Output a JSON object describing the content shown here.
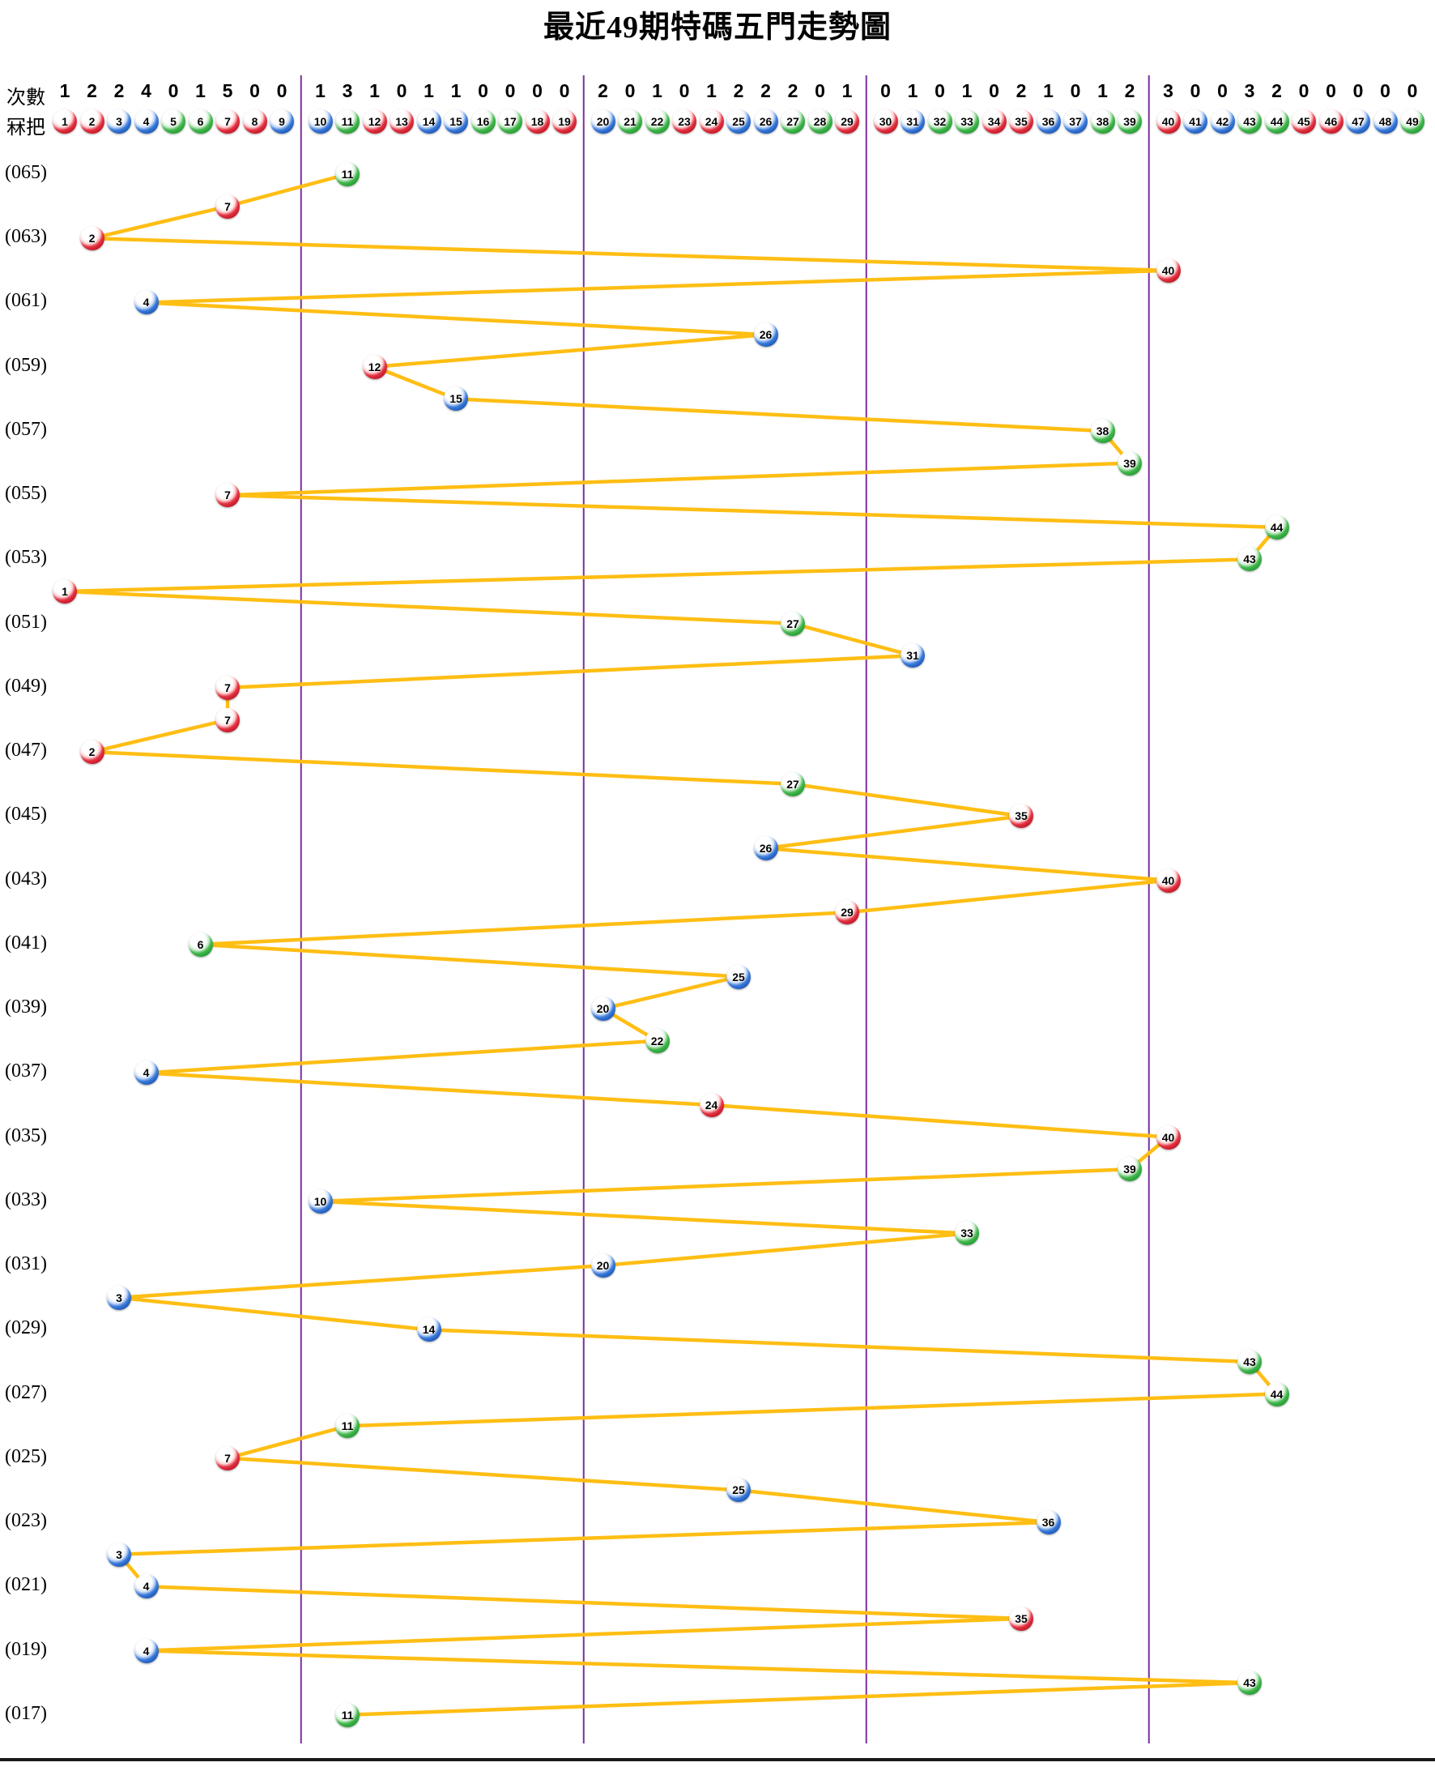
{
  "title": "最近49期特碼五門走勢圖",
  "header": {
    "counts_label": "次數",
    "balls_label": "冧把",
    "counts": [
      1,
      2,
      2,
      4,
      0,
      1,
      5,
      0,
      0,
      1,
      3,
      1,
      0,
      1,
      1,
      0,
      0,
      0,
      0,
      2,
      0,
      1,
      0,
      1,
      2,
      2,
      2,
      0,
      1,
      0,
      1,
      0,
      1,
      0,
      2,
      1,
      0,
      1,
      2,
      3,
      0,
      0,
      3,
      2,
      0,
      0,
      0,
      0,
      0
    ],
    "numbers": [
      1,
      2,
      3,
      4,
      5,
      6,
      7,
      8,
      9,
      10,
      11,
      12,
      13,
      14,
      15,
      16,
      17,
      18,
      19,
      20,
      21,
      22,
      23,
      24,
      25,
      26,
      27,
      28,
      29,
      30,
      31,
      32,
      33,
      34,
      35,
      36,
      37,
      38,
      39,
      40,
      41,
      42,
      43,
      44,
      45,
      46,
      47,
      48,
      49
    ]
  },
  "colors": {
    "red": "#C01322",
    "blue": "#1A55B4",
    "green": "#219A30",
    "line": "#FFBE14",
    "divider": "#7B2FA0",
    "bottom_rule": "#1A1A1A"
  },
  "ball_color_map": {
    "red": [
      1,
      2,
      7,
      8,
      12,
      13,
      18,
      19,
      23,
      24,
      29,
      30,
      34,
      35,
      40,
      45,
      46
    ],
    "blue": [
      3,
      4,
      9,
      10,
      14,
      15,
      20,
      25,
      26,
      31,
      36,
      37,
      41,
      42,
      47,
      48
    ],
    "green": [
      5,
      6,
      11,
      16,
      17,
      21,
      22,
      27,
      28,
      32,
      33,
      38,
      39,
      43,
      44,
      49
    ]
  },
  "chart_data": {
    "type": "line",
    "title": "最近49期特碼五門走勢圖",
    "x_range": [
      1,
      49
    ],
    "groups": [
      [
        1,
        9
      ],
      [
        10,
        19
      ],
      [
        20,
        29
      ],
      [
        30,
        39
      ],
      [
        40,
        49
      ]
    ],
    "group_counts": {
      "1-9": [
        1,
        2,
        2,
        4,
        0,
        1,
        5,
        0,
        0
      ],
      "10-19": [
        1,
        3,
        1,
        0,
        1,
        1,
        0,
        0,
        0,
        0
      ],
      "20-29": [
        2,
        0,
        1,
        0,
        1,
        2,
        2,
        2,
        0,
        1
      ],
      "30-39": [
        0,
        1,
        0,
        1,
        0,
        2,
        1,
        0,
        1,
        2
      ],
      "40-49": [
        3,
        0,
        0,
        3,
        2,
        0,
        0,
        0,
        0,
        0
      ]
    },
    "rows": [
      {
        "label": "(065)",
        "ball": 11
      },
      {
        "label": "",
        "ball": 7
      },
      {
        "label": "(063)",
        "ball": 2
      },
      {
        "label": "",
        "ball": 40
      },
      {
        "label": "(061)",
        "ball": 4
      },
      {
        "label": "",
        "ball": 26
      },
      {
        "label": "(059)",
        "ball": 12
      },
      {
        "label": "",
        "ball": 15
      },
      {
        "label": "(057)",
        "ball": 38
      },
      {
        "label": "",
        "ball": 39
      },
      {
        "label": "(055)",
        "ball": 7
      },
      {
        "label": "",
        "ball": 44
      },
      {
        "label": "(053)",
        "ball": 43
      },
      {
        "label": "",
        "ball": 1
      },
      {
        "label": "(051)",
        "ball": 27
      },
      {
        "label": "",
        "ball": 31
      },
      {
        "label": "(049)",
        "ball": 7
      },
      {
        "label": "",
        "ball": 7
      },
      {
        "label": "(047)",
        "ball": 2
      },
      {
        "label": "",
        "ball": 27
      },
      {
        "label": "(045)",
        "ball": 35
      },
      {
        "label": "",
        "ball": 26
      },
      {
        "label": "(043)",
        "ball": 40
      },
      {
        "label": "",
        "ball": 29
      },
      {
        "label": "(041)",
        "ball": 6
      },
      {
        "label": "",
        "ball": 25
      },
      {
        "label": "(039)",
        "ball": 20
      },
      {
        "label": "",
        "ball": 22
      },
      {
        "label": "(037)",
        "ball": 4
      },
      {
        "label": "",
        "ball": 24
      },
      {
        "label": "(035)",
        "ball": 40
      },
      {
        "label": "",
        "ball": 39
      },
      {
        "label": "(033)",
        "ball": 10
      },
      {
        "label": "",
        "ball": 33
      },
      {
        "label": "(031)",
        "ball": 20
      },
      {
        "label": "",
        "ball": 3
      },
      {
        "label": "(029)",
        "ball": 14
      },
      {
        "label": "",
        "ball": 43
      },
      {
        "label": "(027)",
        "ball": 44
      },
      {
        "label": "",
        "ball": 11
      },
      {
        "label": "(025)",
        "ball": 7
      },
      {
        "label": "",
        "ball": 25
      },
      {
        "label": "(023)",
        "ball": 36
      },
      {
        "label": "",
        "ball": 3
      },
      {
        "label": "(021)",
        "ball": 4
      },
      {
        "label": "",
        "ball": 35
      },
      {
        "label": "(019)",
        "ball": 4
      },
      {
        "label": "",
        "ball": 43
      },
      {
        "label": "(017)",
        "ball": 11
      }
    ]
  }
}
